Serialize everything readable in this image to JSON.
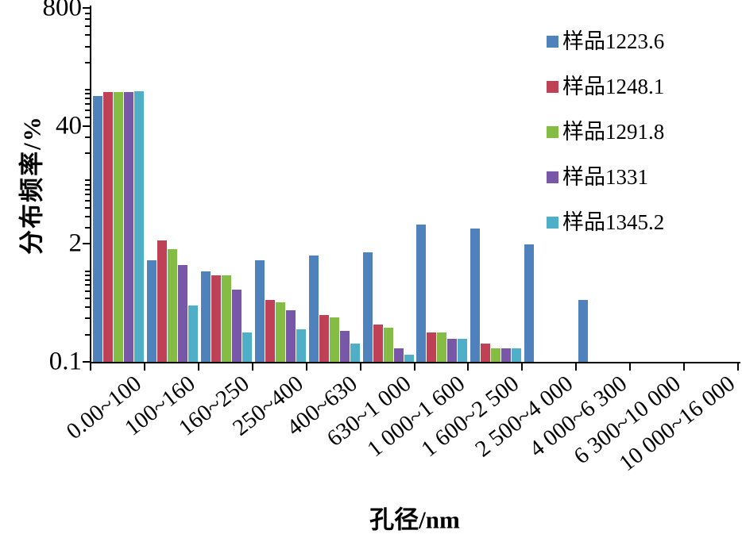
{
  "figure": {
    "background": "#ffffff",
    "axis_color": "#000000",
    "text_color": "#000000"
  },
  "chart_data": {
    "type": "bar",
    "title": "",
    "xlabel": "孔径/nm",
    "ylabel": "分布频率/%",
    "grid": false,
    "legend_position": "top-right",
    "x_axis": {
      "categories": [
        "0.00~100",
        "100~160",
        "160~250",
        "250~400",
        "400~630",
        "630~1 000",
        "1 000~1 600",
        "1 600~2 500",
        "2 500~4 000",
        "4 000~6 300",
        "6 300~10 000",
        "10 000~16 000"
      ]
    },
    "y_axis": {
      "scale": "log",
      "min": 0.1,
      "max": 800,
      "major_ticks": [
        0.1,
        2,
        40,
        800
      ],
      "major_tick_labels": [
        "0.1",
        "2",
        "40",
        "800"
      ]
    },
    "series": [
      {
        "name": "样品1223.6",
        "color": "#4F81BD",
        "values": [
          85,
          1.32,
          1.0,
          1.32,
          1.5,
          1.62,
          3.26,
          2.95,
          1.98,
          0.48,
          0,
          0
        ]
      },
      {
        "name": "样品1248.1",
        "color": "#BE4155",
        "values": [
          94,
          2.2,
          0.9,
          0.48,
          0.33,
          0.26,
          0.21,
          0.16,
          0,
          0,
          0,
          0
        ]
      },
      {
        "name": "样品1291.8",
        "color": "#84BC44",
        "values": [
          94.5,
          1.76,
          0.9,
          0.45,
          0.31,
          0.24,
          0.21,
          0.14,
          0,
          0,
          0,
          0
        ]
      },
      {
        "name": "样品1331",
        "color": "#7857A8",
        "values": [
          95,
          1.17,
          0.62,
          0.37,
          0.22,
          0.14,
          0.18,
          0.14,
          0,
          0,
          0,
          0
        ]
      },
      {
        "name": "样品1345.2",
        "color": "#4FAFC8",
        "values": [
          96,
          0.42,
          0.21,
          0.23,
          0.16,
          0.12,
          0.18,
          0.14,
          0,
          0,
          0,
          0
        ]
      }
    ]
  }
}
